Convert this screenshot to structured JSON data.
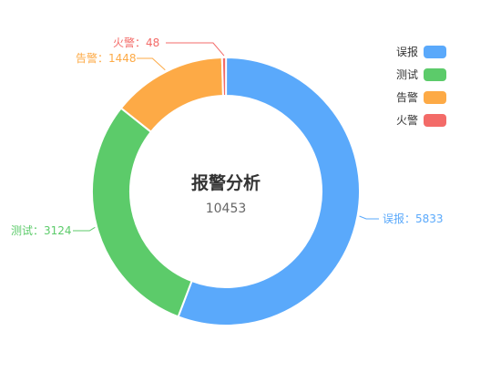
{
  "chart_data": {
    "type": "pie",
    "title": "报警分析",
    "total": "10453",
    "series": [
      {
        "name": "误报",
        "value": 5833,
        "label": "误报：5833",
        "color": "#5aa9fb"
      },
      {
        "name": "测试",
        "value": 3124,
        "label": "测试：3124",
        "color": "#5ccb6a"
      },
      {
        "name": "告警",
        "value": 1448,
        "label": "告警：1448",
        "color": "#fdaa46"
      },
      {
        "name": "火警",
        "value": 48,
        "label": "火警：48",
        "color": "#f36b68"
      }
    ],
    "legend_position": "top-right"
  }
}
